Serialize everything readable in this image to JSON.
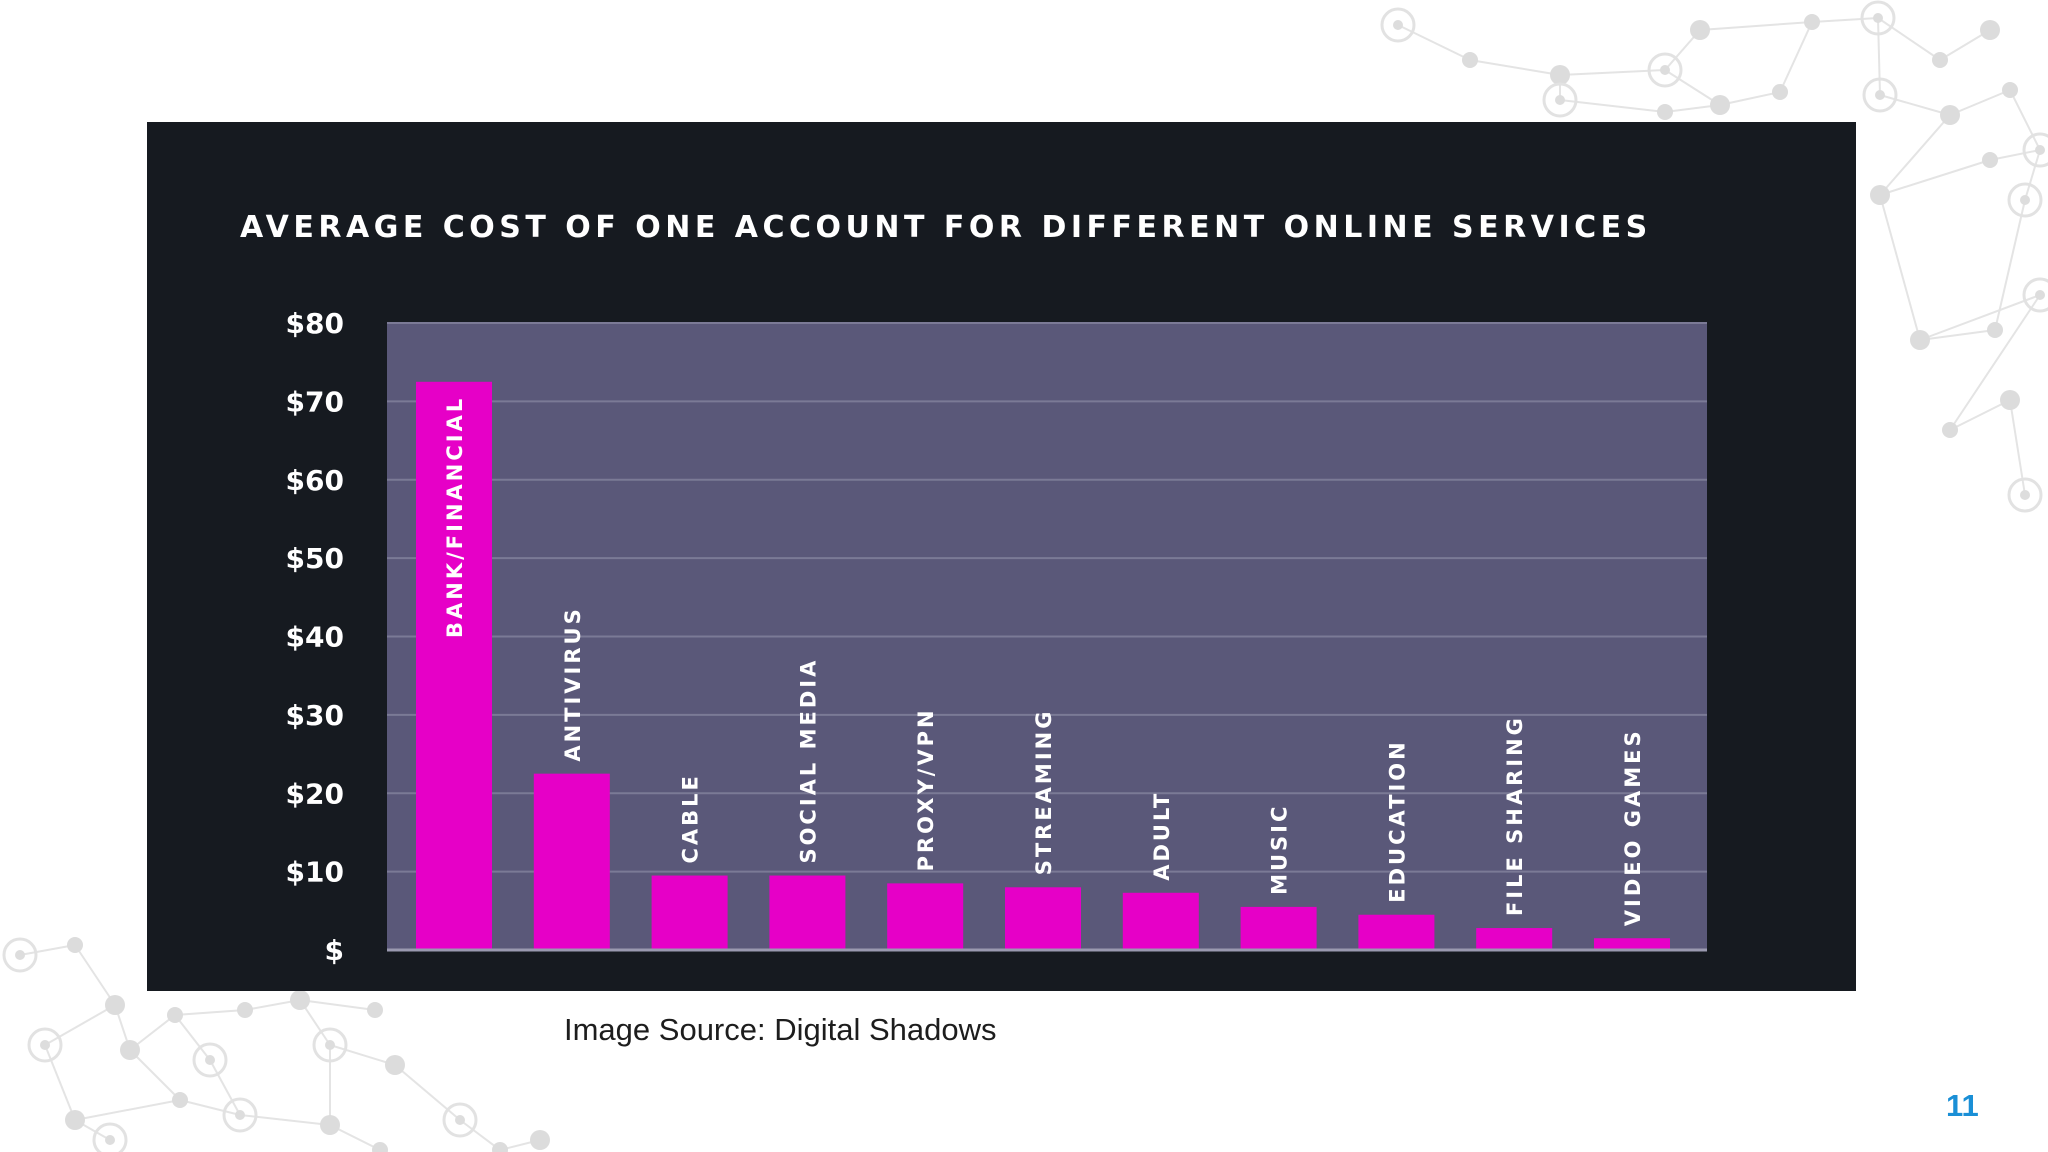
{
  "slide": {
    "source_note": "Image Source: Digital Shadows",
    "page_number": "11"
  },
  "colors": {
    "panel_bg": "#161a20",
    "plot_bg": "#5a5879",
    "bar": "#e600c7",
    "grid": "#7b7a96",
    "accent_page_number": "#1a8fd6"
  },
  "chart_data": {
    "type": "bar",
    "title": "AVERAGE COST OF ONE ACCOUNT FOR DIFFERENT ONLINE SERVICES",
    "categories": [
      "BANK/FINANCIAL",
      "ANTIVIRUS",
      "CABLE",
      "SOCIAL MEDIA",
      "PROXY/VPN",
      "STREAMING",
      "ADULT",
      "MUSIC",
      "EDUCATION",
      "FILE SHARING",
      "VIDEO GAMES"
    ],
    "values": [
      72.5,
      22.5,
      9.5,
      9.5,
      8.5,
      8,
      7.3,
      5.5,
      4.5,
      2.8,
      1.5
    ],
    "ylim": [
      0,
      80
    ],
    "yticks": [
      0,
      10,
      20,
      30,
      40,
      50,
      60,
      70,
      80
    ],
    "ytick_labels": [
      "$",
      "$10",
      "$20",
      "$30",
      "$40",
      "$50",
      "$60",
      "$70",
      "$80"
    ],
    "grid": true,
    "legend": "none",
    "category_labels": "rotated, on or above bars"
  }
}
